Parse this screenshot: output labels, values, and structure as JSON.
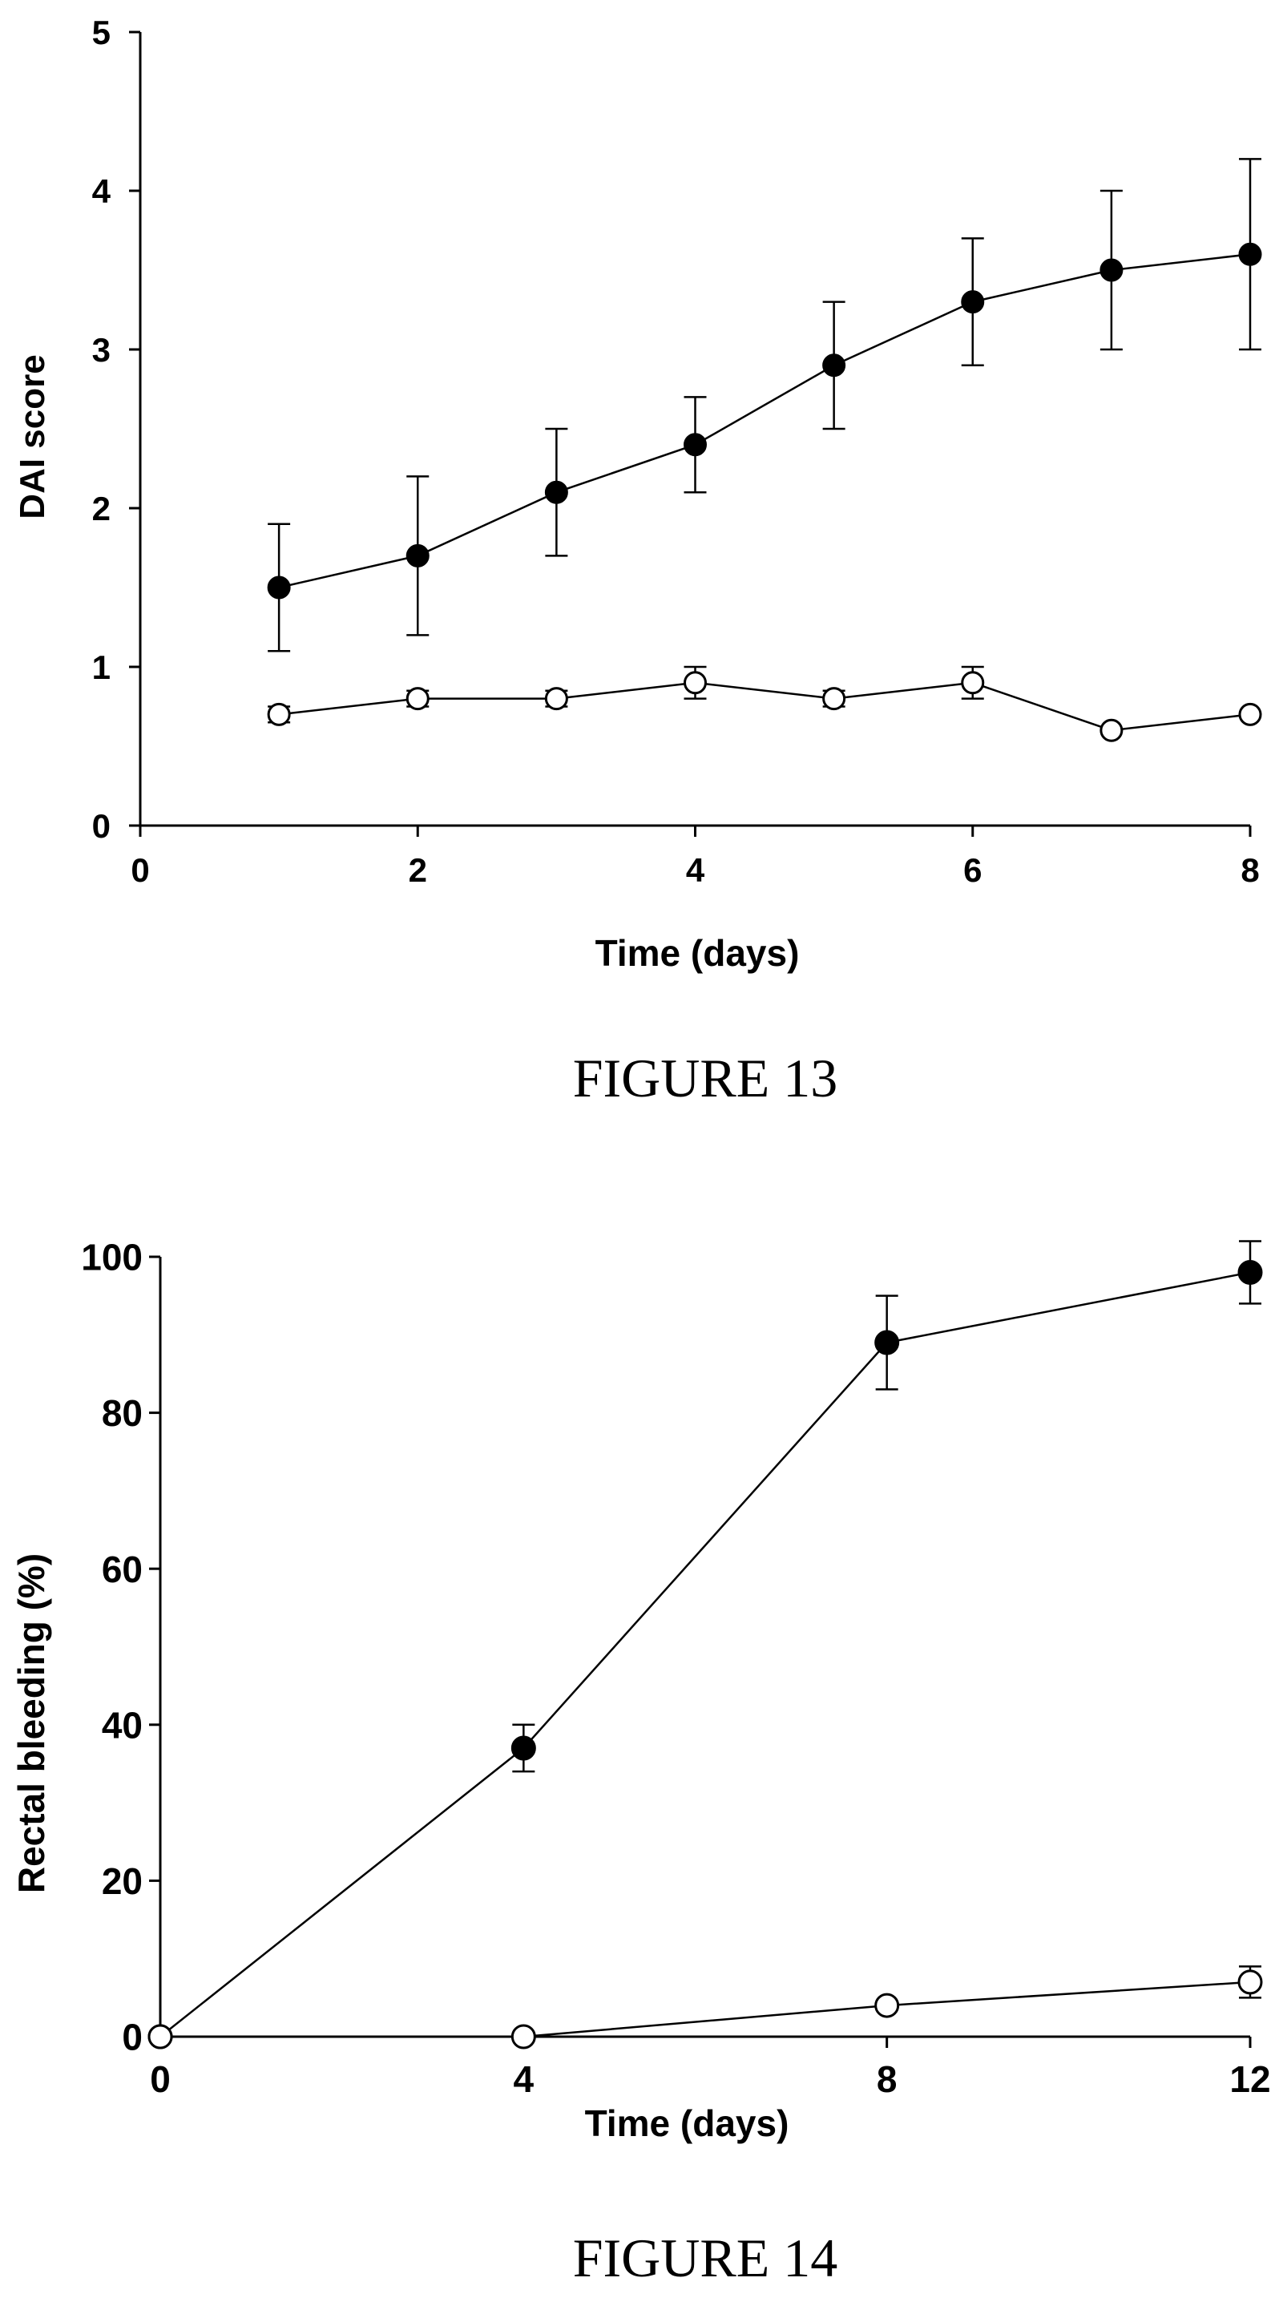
{
  "colors": {
    "ink": "#000000",
    "paper": "#ffffff"
  },
  "chart_data": [
    {
      "type": "line",
      "caption": "FIGURE 13",
      "xlabel": "Time (days)",
      "ylabel": "DAI score",
      "xlim": [
        0,
        8
      ],
      "ylim": [
        0,
        5
      ],
      "x_ticks": [
        0,
        2,
        4,
        6,
        8
      ],
      "y_ticks": [
        0,
        1,
        2,
        3,
        4,
        5
      ],
      "grid": false,
      "legend": "none",
      "series": [
        {
          "marker": "filled-circle",
          "x": [
            1,
            2,
            3,
            4,
            5,
            6,
            7,
            8
          ],
          "y": [
            1.5,
            1.7,
            2.1,
            2.4,
            2.9,
            3.3,
            3.5,
            3.6
          ],
          "error": [
            0.4,
            0.5,
            0.4,
            0.3,
            0.4,
            0.4,
            0.5,
            0.6
          ]
        },
        {
          "marker": "open-circle",
          "x": [
            1,
            2,
            3,
            4,
            5,
            6,
            7,
            8
          ],
          "y": [
            0.7,
            0.8,
            0.8,
            0.9,
            0.8,
            0.9,
            0.6,
            0.7
          ],
          "error": [
            0.05,
            0.05,
            0.05,
            0.1,
            0.05,
            0.1,
            0.0,
            0.0
          ]
        }
      ]
    },
    {
      "type": "line",
      "caption": "FIGURE 14",
      "xlabel": "Time (days)",
      "ylabel": "Rectal bleeding (%)",
      "xlim": [
        0,
        12
      ],
      "ylim": [
        0,
        100
      ],
      "x_ticks": [
        0,
        4,
        8,
        12
      ],
      "y_ticks": [
        0,
        20,
        40,
        60,
        80,
        100
      ],
      "grid": false,
      "legend": "none",
      "series": [
        {
          "marker": "filled-circle",
          "x": [
            0,
            4,
            8,
            12
          ],
          "y": [
            0,
            37,
            89,
            98
          ],
          "error": [
            0,
            3,
            6,
            4
          ]
        },
        {
          "marker": "open-circle",
          "x": [
            0,
            4,
            8,
            12
          ],
          "y": [
            0,
            0,
            4,
            7
          ],
          "error": [
            0,
            0,
            0,
            2
          ]
        }
      ]
    }
  ]
}
